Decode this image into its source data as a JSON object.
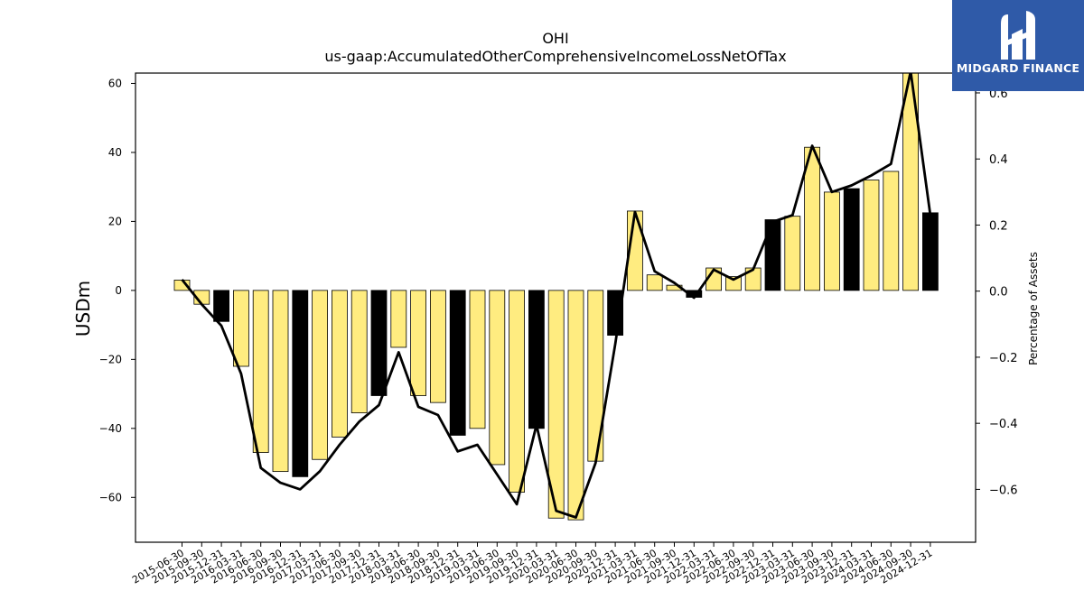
{
  "chart_data": {
    "type": "bar",
    "title": "OHI",
    "subtitle": "us-gaap:AccumulatedOtherComprehensiveIncomeLossNetOfTax",
    "ylabel": "USDm",
    "y2label": "Percentage of Assets",
    "ylim": [
      -73,
      63
    ],
    "y2lim": [
      -0.76,
      0.66
    ],
    "yticks": [
      -60,
      -40,
      -20,
      0,
      20,
      40,
      60
    ],
    "y2ticks": [
      -0.6,
      -0.4,
      -0.2,
      0.0,
      0.2,
      0.4,
      0.6
    ],
    "ytick_labels": [
      "−60",
      "−40",
      "−20",
      "0",
      "20",
      "40",
      "60"
    ],
    "y2tick_labels": [
      "−0.6",
      "−0.4",
      "−0.2",
      "0.0",
      "0.2",
      "0.4",
      "0.6"
    ],
    "categories": [
      "2015-06-30",
      "2015-09-30",
      "2015-12-31",
      "2016-03-31",
      "2016-06-30",
      "2016-09-30",
      "2016-12-31",
      "2017-03-31",
      "2017-06-30",
      "2017-09-30",
      "2017-12-31",
      "2018-03-31",
      "2018-06-30",
      "2018-09-30",
      "2018-12-31",
      "2019-03-31",
      "2019-06-30",
      "2019-09-30",
      "2019-12-31",
      "2020-03-31",
      "2020-06-30",
      "2020-09-30",
      "2020-12-31",
      "2021-03-31",
      "2021-06-30",
      "2021-09-30",
      "2021-12-31",
      "2022-03-31",
      "2022-06-30",
      "2022-09-30",
      "2022-12-31",
      "2023-03-31",
      "2023-06-30",
      "2023-09-30",
      "2023-12-31",
      "2024-03-31",
      "2024-06-30",
      "2024-09-30",
      "2024-12-31"
    ],
    "series": [
      {
        "kind": "bar",
        "values": [
          3.0,
          -4.0,
          -9.0,
          -22.0,
          -47.0,
          -52.5,
          -54.0,
          -49.0,
          -42.5,
          -35.5,
          -30.5,
          -16.5,
          -30.5,
          -32.5,
          -42.0,
          -40.0,
          -50.5,
          -58.5,
          -40.0,
          -66.0,
          -66.5,
          -49.5,
          -13.0,
          23.0,
          4.5,
          1.5,
          -2.0,
          6.5,
          4.0,
          6.5,
          20.5,
          21.5,
          41.5,
          28.5,
          29.5,
          32.0,
          34.5,
          63.0,
          22.5
        ],
        "year_end": [
          false,
          false,
          true,
          false,
          false,
          false,
          true,
          false,
          false,
          false,
          true,
          false,
          false,
          false,
          true,
          false,
          false,
          false,
          true,
          false,
          false,
          false,
          true,
          false,
          false,
          false,
          true,
          false,
          false,
          false,
          true,
          false,
          false,
          false,
          true,
          false,
          false,
          false,
          true
        ],
        "color": "#ffec80",
        "highlight_color": "#000000"
      },
      {
        "kind": "line",
        "axis": "right",
        "values": [
          0.035,
          -0.04,
          -0.105,
          -0.25,
          -0.535,
          -0.58,
          -0.6,
          -0.545,
          -0.465,
          -0.395,
          -0.345,
          -0.185,
          -0.35,
          -0.375,
          -0.485,
          -0.465,
          -0.555,
          -0.645,
          -0.405,
          -0.665,
          -0.685,
          -0.52,
          -0.16,
          0.24,
          0.06,
          0.025,
          -0.02,
          0.065,
          0.035,
          0.065,
          0.21,
          0.23,
          0.44,
          0.3,
          0.32,
          0.35,
          0.385,
          0.665,
          0.23
        ],
        "color": "#000000"
      }
    ],
    "grid": false,
    "legend": "none"
  },
  "logo": {
    "text": "MIDGARD FINANCE",
    "background": "#2f5aa8"
  }
}
